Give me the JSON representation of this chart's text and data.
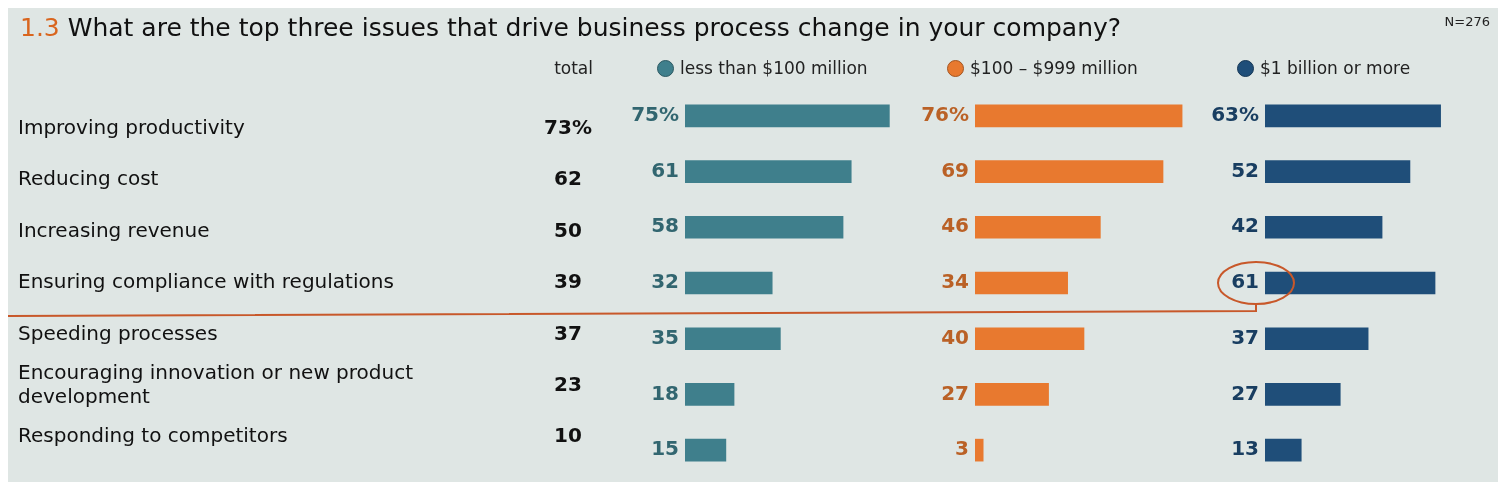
{
  "chart_data": [
    {
      "type": "other",
      "title": "1.3 What are the top three issues that drive business process change in your company?",
      "annotations": [
        "N=276"
      ],
      "categories": [
        "Improving productivity",
        "Reducing cost",
        "Increasing revenue",
        "Ensuring compliance with regulations",
        "Speeding processes",
        "Encouraging innovation or new product development",
        "Responding to competitors"
      ],
      "series": [
        {
          "name": "total",
          "values": [
            73,
            62,
            50,
            39,
            37,
            23,
            10
          ],
          "value_labels": [
            "73%",
            "62",
            "50",
            "39",
            "37",
            "23",
            "10"
          ]
        }
      ]
    },
    {
      "type": "bar",
      "orientation": "horizontal",
      "categories": [
        null,
        null,
        null,
        null,
        null,
        null,
        null
      ],
      "tick_labels": false,
      "legend": "top",
      "series": [
        {
          "name": "less than $100 million",
          "color": "#3f7f8c",
          "values": [
            75,
            61,
            58,
            32,
            35,
            18,
            15
          ],
          "value_labels": [
            "75%",
            "61",
            "58",
            "32",
            "35",
            "18",
            "15"
          ]
        }
      ]
    },
    {
      "type": "bar",
      "orientation": "horizontal",
      "categories": [
        null,
        null,
        null,
        null,
        null,
        null,
        null
      ],
      "tick_labels": false,
      "legend": "top",
      "series": [
        {
          "name": "$100 – $999 million",
          "color": "#e8792f",
          "values": [
            76,
            69,
            46,
            34,
            40,
            27,
            3
          ],
          "value_labels": [
            "76%",
            "69",
            "46",
            "34",
            "40",
            "27",
            "3"
          ]
        }
      ]
    },
    {
      "type": "bar",
      "orientation": "horizontal",
      "categories": [
        null,
        null,
        null,
        null,
        null,
        null,
        null
      ],
      "tick_labels": false,
      "legend": "top",
      "series": [
        {
          "name": "$1 billion or more",
          "color": "#1f4e79",
          "values": [
            63,
            52,
            42,
            61,
            37,
            27,
            13
          ],
          "value_labels": [
            "63%",
            "52",
            "42",
            "61",
            "37",
            "27",
            "13"
          ]
        }
      ]
    }
  ]
}
